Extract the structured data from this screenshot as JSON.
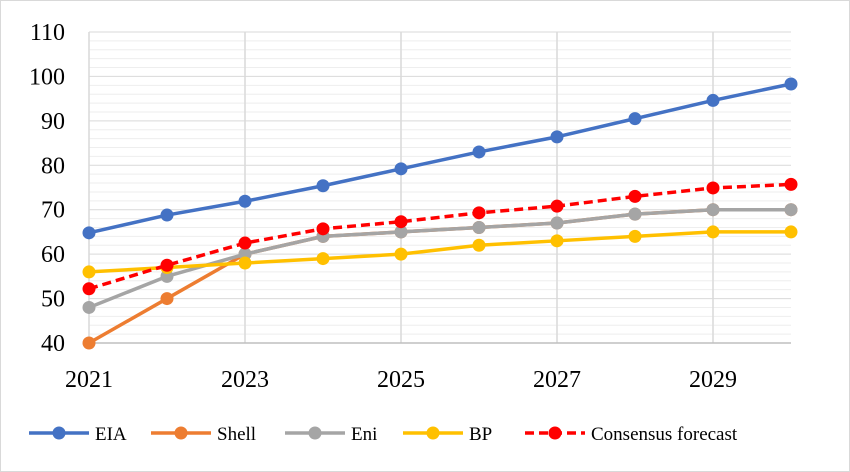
{
  "chart_data": {
    "type": "line",
    "title": "",
    "xlabel": "",
    "ylabel": "",
    "x": [
      2021,
      2022,
      2023,
      2024,
      2025,
      2026,
      2027,
      2028,
      2029,
      2030
    ],
    "x_tick_labels": [
      "2021",
      "2023",
      "2025",
      "2027",
      "2029"
    ],
    "y_tick_labels": [
      "40",
      "50",
      "60",
      "70",
      "80",
      "90",
      "100",
      "110"
    ],
    "ylim": [
      40,
      110
    ],
    "grid": "vertical major and horizontal minor gridlines",
    "legend_position": "bottom",
    "series": [
      {
        "name": "EIA",
        "color": "#4472C4",
        "dash": false,
        "values": [
          64.8,
          68.8,
          71.9,
          75.4,
          79.2,
          83.0,
          86.4,
          90.5,
          94.6,
          98.3
        ]
      },
      {
        "name": "Shell",
        "color": "#ED7D31",
        "dash": false,
        "values": [
          40.0,
          50.0,
          60.0,
          64.0,
          65.0,
          66.0,
          67.0,
          69.0,
          70.0,
          70.0
        ]
      },
      {
        "name": "Eni",
        "color": "#A5A5A5",
        "dash": false,
        "values": [
          48.0,
          55.0,
          60.0,
          64.0,
          65.0,
          66.0,
          67.0,
          69.0,
          70.0,
          70.0
        ]
      },
      {
        "name": "BP",
        "color": "#FFC000",
        "dash": false,
        "values": [
          56.0,
          57.0,
          58.0,
          59.0,
          60.0,
          62.0,
          63.0,
          64.0,
          65.0,
          65.0
        ]
      },
      {
        "name": "Consensus forecast",
        "color": "#FF0000",
        "dash": true,
        "values": [
          52.2,
          57.5,
          62.5,
          65.7,
          67.3,
          69.3,
          70.8,
          73.0,
          74.9,
          75.7
        ]
      }
    ]
  }
}
